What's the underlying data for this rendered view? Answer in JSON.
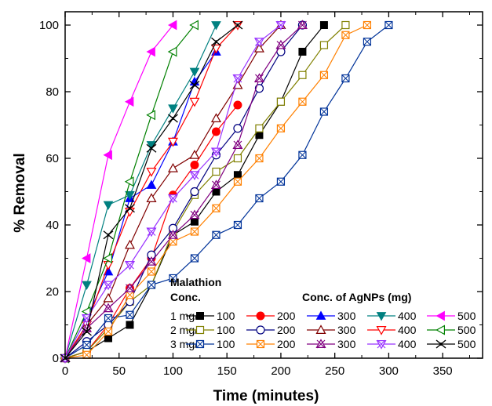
{
  "chart_data": {
    "type": "line",
    "title": "",
    "xlabel": "Time (minutes)",
    "ylabel": "% Removal",
    "xlim": [
      0,
      387
    ],
    "ylim": [
      0,
      104
    ],
    "xticks": [
      0,
      50,
      100,
      150,
      200,
      250,
      300,
      350
    ],
    "yticks": [
      0,
      20,
      40,
      60,
      80,
      100
    ],
    "grid": false,
    "legend": {
      "placement": "bottom-right",
      "heading1": "Malathion",
      "heading2": "Conc.",
      "agnp_heading": "Conc. of AgNPs (mg)",
      "rows": [
        {
          "label": "1 mg/L",
          "doses": [
            "100",
            "200",
            "300",
            "400",
            "500"
          ]
        },
        {
          "label": "2 mg/L",
          "doses": [
            "100",
            "200",
            "300",
            "400",
            "500"
          ]
        },
        {
          "label": "3 mg/L",
          "doses": [
            "100",
            "200",
            "300",
            "400",
            "500"
          ]
        }
      ]
    },
    "series": [
      {
        "malathion": "1 mg/L",
        "dose": "100",
        "color": "#000000",
        "marker": "square-filled",
        "x": [
          0,
          20,
          40,
          60,
          80,
          100,
          120,
          140,
          160,
          180,
          200,
          220,
          240
        ],
        "y": [
          0,
          2,
          6,
          10,
          22,
          37,
          41,
          50,
          55,
          67,
          77,
          92,
          100
        ]
      },
      {
        "malathion": "1 mg/L",
        "dose": "200",
        "color": "#ff0000",
        "marker": "circle-filled",
        "x": [
          0,
          20,
          40,
          60,
          80,
          100,
          120,
          140,
          160
        ],
        "y": [
          0,
          2,
          10,
          21,
          30,
          49,
          58,
          68,
          76
        ]
      },
      {
        "malathion": "1 mg/L",
        "dose": "300",
        "color": "#0000ff",
        "marker": "triangle-up-filled",
        "x": [
          0,
          20,
          40,
          60,
          80,
          100,
          120,
          140
        ],
        "y": [
          0,
          12,
          26,
          48,
          52,
          65,
          83,
          92
        ]
      },
      {
        "malathion": "1 mg/L",
        "dose": "400",
        "color": "#008080",
        "marker": "triangle-down-filled",
        "x": [
          0,
          20,
          40,
          60,
          80,
          100,
          120,
          140
        ],
        "y": [
          0,
          22,
          46,
          49,
          64,
          75,
          86,
          100
        ]
      },
      {
        "malathion": "1 mg/L",
        "dose": "500",
        "color": "#ff00ff",
        "marker": "triangle-left-filled",
        "x": [
          0,
          20,
          40,
          60,
          80,
          100
        ],
        "y": [
          0,
          30,
          61,
          77,
          92,
          100
        ]
      },
      {
        "malathion": "2 mg/L",
        "dose": "100",
        "color": "#808000",
        "marker": "square-open",
        "x": [
          0,
          20,
          40,
          60,
          80,
          100,
          120,
          140,
          160,
          180,
          200,
          220,
          240,
          260
        ],
        "y": [
          0,
          2,
          9,
          17,
          22,
          38,
          49,
          56,
          60,
          69,
          77,
          85,
          94,
          100
        ]
      },
      {
        "malathion": "2 mg/L",
        "dose": "200",
        "color": "#000080",
        "marker": "circle-open",
        "x": [
          0,
          20,
          40,
          60,
          80,
          100,
          120,
          140,
          160,
          180,
          200,
          220
        ],
        "y": [
          0,
          5,
          10,
          17,
          31,
          39,
          50,
          61,
          69,
          81,
          92,
          100
        ]
      },
      {
        "malathion": "2 mg/L",
        "dose": "300",
        "color": "#800000",
        "marker": "triangle-up-open",
        "x": [
          0,
          20,
          40,
          60,
          80,
          100,
          120,
          140,
          160,
          180,
          200
        ],
        "y": [
          0,
          10,
          18,
          34,
          48,
          57,
          61,
          72,
          82,
          93,
          100
        ]
      },
      {
        "malathion": "2 mg/L",
        "dose": "400",
        "color": "#ff0000",
        "marker": "triangle-down-open",
        "x": [
          0,
          20,
          40,
          60,
          80,
          100,
          120,
          140,
          160
        ],
        "y": [
          0,
          10,
          28,
          44,
          56,
          65,
          77,
          93,
          100
        ]
      },
      {
        "malathion": "2 mg/L",
        "dose": "500",
        "color": "#008000",
        "marker": "triangle-left-open",
        "x": [
          0,
          20,
          40,
          60,
          80,
          100,
          120
        ],
        "y": [
          0,
          14,
          30,
          53,
          73,
          92,
          100
        ]
      },
      {
        "malathion": "3 mg/L",
        "dose": "100",
        "color": "#003399",
        "marker": "square-cross",
        "x": [
          0,
          20,
          40,
          60,
          80,
          100,
          120,
          140,
          160,
          180,
          200,
          220,
          240,
          260,
          280,
          300
        ],
        "y": [
          0,
          4,
          12,
          13,
          22,
          24,
          30,
          37,
          40,
          48,
          53,
          61,
          74,
          84,
          95,
          100
        ]
      },
      {
        "malathion": "3 mg/L",
        "dose": "200",
        "color": "#ff8000",
        "marker": "square-cross",
        "x": [
          0,
          20,
          40,
          60,
          80,
          100,
          120,
          140,
          160,
          180,
          200,
          220,
          240,
          260,
          280
        ],
        "y": [
          0,
          1,
          8,
          19,
          26,
          35,
          38,
          45,
          53,
          60,
          69,
          77,
          85,
          97,
          100
        ]
      },
      {
        "malathion": "3 mg/L",
        "dose": "300",
        "color": "#800080",
        "marker": "x-in-triangle",
        "x": [
          0,
          20,
          40,
          60,
          80,
          100,
          120,
          140,
          160,
          180,
          200,
          220
        ],
        "y": [
          0,
          9,
          15,
          21,
          29,
          37,
          43,
          52,
          64,
          84,
          94,
          100
        ]
      },
      {
        "malathion": "3 mg/L",
        "dose": "400",
        "color": "#9933ff",
        "marker": "x-in-triangle-down",
        "x": [
          0,
          20,
          40,
          60,
          80,
          100,
          120,
          140,
          160,
          180,
          200
        ],
        "y": [
          0,
          12,
          22,
          28,
          38,
          48,
          55,
          62,
          84,
          95,
          100
        ]
      },
      {
        "malathion": "3 mg/L",
        "dose": "500",
        "color": "#000000",
        "marker": "x-cross",
        "x": [
          0,
          20,
          40,
          60,
          80,
          100,
          120,
          140,
          160
        ],
        "y": [
          0,
          8,
          37,
          45,
          63,
          72,
          82,
          95,
          100
        ]
      }
    ]
  }
}
